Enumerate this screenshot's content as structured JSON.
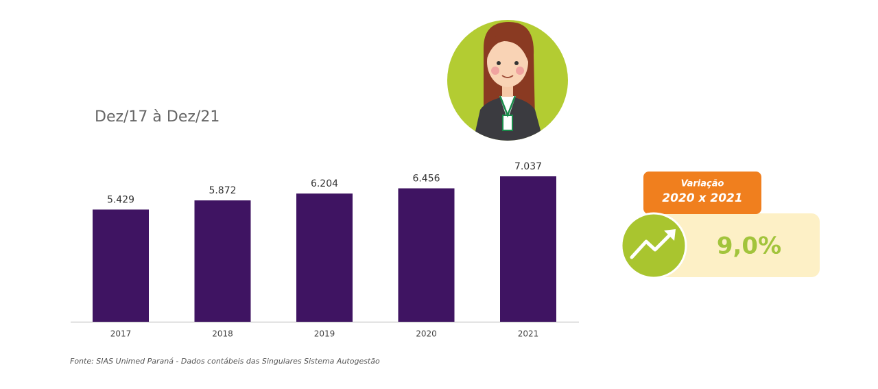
{
  "chart_data": {
    "type": "bar",
    "title": "Dez/17 à Dez/21",
    "categories": [
      "2017",
      "2018",
      "2019",
      "2020",
      "2021"
    ],
    "values": [
      5.429,
      5.872,
      6.204,
      6.456,
      7.037
    ],
    "color": "#3f1462",
    "source": "Fonte: SIAS Unimed Paraná - Dados contábeis das Singulares Sistema Autogestão",
    "callout": {
      "title": "Variação",
      "period": "2020 x 2021",
      "value": "9,0%"
    }
  }
}
